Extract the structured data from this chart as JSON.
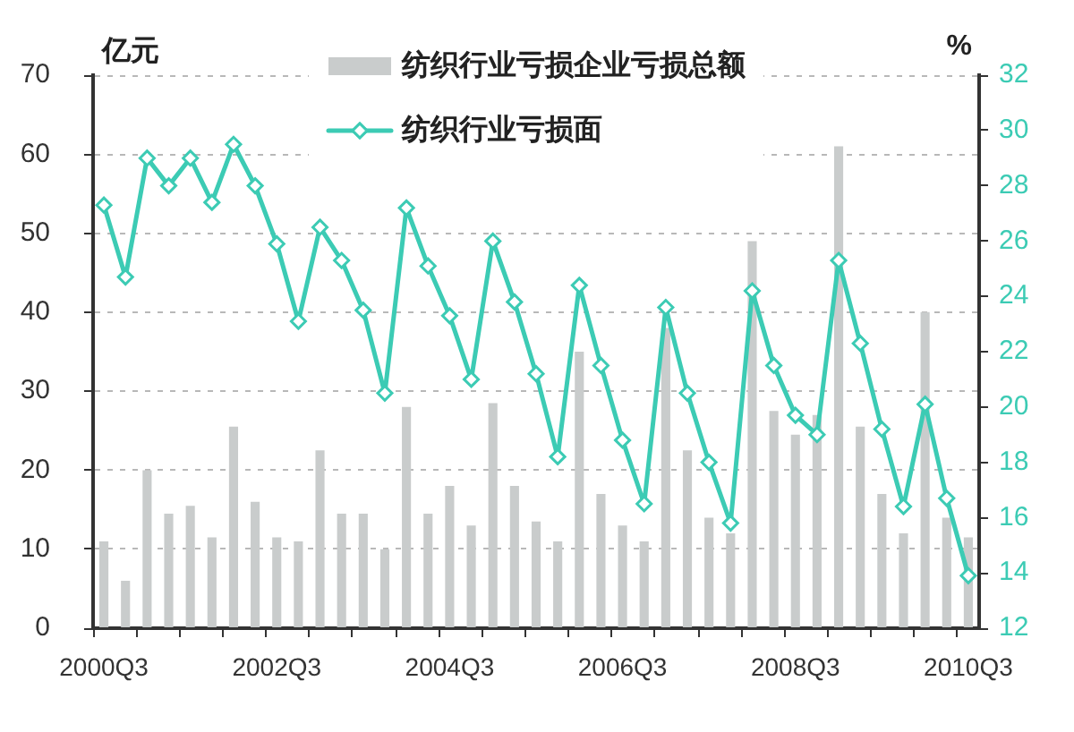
{
  "chart_data": {
    "type": "bar",
    "ylabel": "亿元",
    "y2label": "%",
    "categories": [
      "2000Q3",
      null,
      null,
      null,
      null,
      null,
      null,
      null,
      "2002Q3",
      null,
      null,
      null,
      null,
      null,
      null,
      null,
      "2004Q3",
      null,
      null,
      null,
      null,
      null,
      null,
      null,
      "2006Q3",
      null,
      null,
      null,
      null,
      null,
      null,
      null,
      "2008Q3",
      null,
      null,
      null,
      null,
      null,
      null,
      null,
      "2010Q3"
    ],
    "series": [
      {
        "name": "纺织行业亏损企业亏损总额",
        "color": "#c9cccc",
        "values": [
          11,
          6,
          20,
          14.5,
          15.5,
          11.5,
          25.5,
          16,
          11.5,
          11,
          22.5,
          14.5,
          14.5,
          10,
          28,
          14.5,
          18,
          13,
          28.5,
          18,
          13.5,
          11,
          35,
          17,
          13,
          11,
          38,
          22.5,
          14,
          12,
          49,
          27.5,
          24.5,
          27,
          61,
          25.5,
          17,
          12,
          40,
          14,
          11.5
        ]
      },
      {
        "name": "纺织行业亏损面",
        "type": "line",
        "axis": "y2",
        "color": "#3ccbb4",
        "values": [
          27.3,
          24.7,
          29.0,
          28.0,
          29.0,
          27.4,
          29.5,
          28.0,
          25.9,
          23.1,
          26.5,
          25.3,
          23.5,
          20.5,
          27.2,
          25.1,
          23.3,
          21.0,
          26.0,
          23.8,
          21.2,
          18.2,
          24.4,
          21.5,
          18.8,
          16.5,
          23.6,
          20.5,
          18.0,
          15.8,
          24.2,
          21.5,
          19.7,
          19.0,
          25.3,
          22.3,
          19.2,
          16.4,
          20.1,
          16.7,
          13.9
        ]
      }
    ],
    "ylim": [
      0,
      70
    ],
    "yticks": [
      0,
      10,
      20,
      30,
      40,
      50,
      60,
      70
    ],
    "y2lim": [
      12,
      32
    ],
    "y2ticks": [
      12,
      14,
      16,
      18,
      20,
      22,
      24,
      26,
      28,
      30,
      32
    ],
    "grid": "y",
    "legend": "top",
    "marker": "diamond",
    "line_style": "solid"
  }
}
